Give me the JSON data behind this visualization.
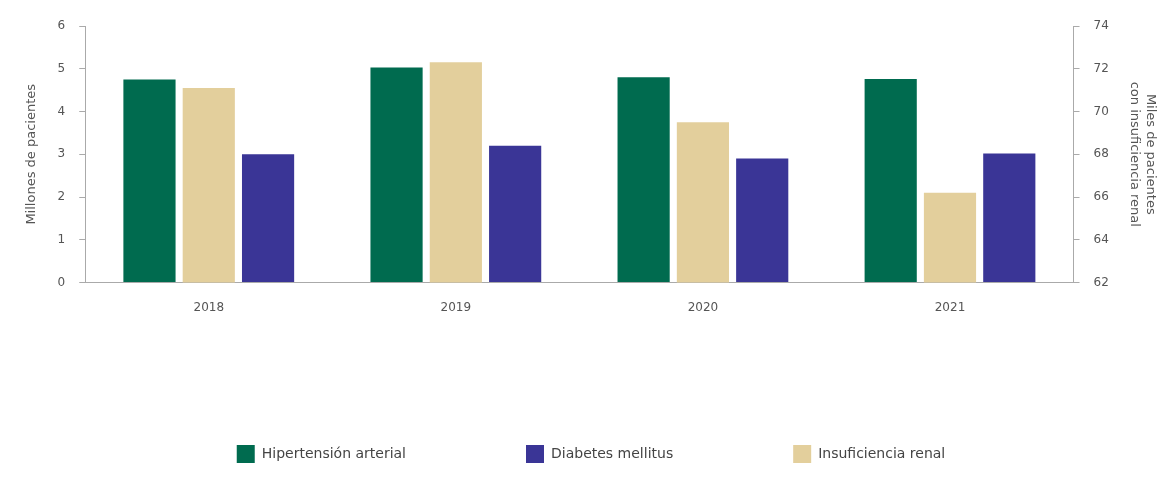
{
  "chart_data": {
    "type": "bar",
    "ylabel": "Millones de pacientes",
    "y2label": "Miles de pacientes\ncon insuficiencia renal",
    "categories": [
      "2018",
      "2019",
      "2020",
      "2021"
    ],
    "series": [
      {
        "name": "Hipertensión arterial",
        "color": "#006b4f",
        "values": [
          4.75,
          5.03,
          4.8,
          4.76
        ]
      },
      {
        "name": "Insuficiencia renal",
        "color": "#e3cf9c",
        "values": [
          71.1,
          72.3,
          69.5,
          66.2
        ],
        "axis": "y2"
      },
      {
        "name": "Diabetes mellitus",
        "color": "#3a3596",
        "values": [
          3.0,
          3.2,
          2.9,
          3.02
        ]
      }
    ],
    "ylim": [
      0,
      6
    ],
    "yticks": [
      0,
      1,
      2,
      3,
      4,
      5,
      6
    ],
    "y2lim": [
      62,
      74
    ],
    "y2ticks": [
      62,
      64,
      66,
      68,
      70,
      72,
      74
    ],
    "grid": false,
    "legend": "bottom"
  }
}
